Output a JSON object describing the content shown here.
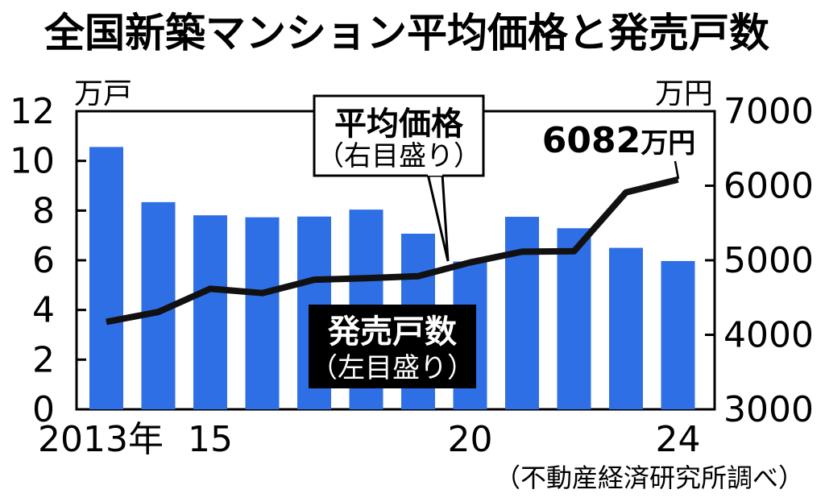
{
  "chart_data": {
    "type": "bar+line",
    "title": "全国新築マンション平均価格と発売戸数",
    "x": [
      2013,
      2014,
      2015,
      2016,
      2017,
      2018,
      2019,
      2020,
      2021,
      2022,
      2023,
      2024
    ],
    "x_tick_labels": [
      {
        "year": 2013,
        "label": "2013年"
      },
      {
        "year": 2015,
        "label": "15"
      },
      {
        "year": 2020,
        "label": "20"
      },
      {
        "year": 2024,
        "label": "24"
      }
    ],
    "series": [
      {
        "name": "発売戸数",
        "axis_note": "（左目盛り）",
        "type": "bar",
        "axis": "left",
        "unit": "万戸",
        "values": [
          10.56,
          8.34,
          7.81,
          7.73,
          7.76,
          8.04,
          7.07,
          5.95,
          7.75,
          7.29,
          6.5,
          5.97
        ],
        "color": "#2f6fe6"
      },
      {
        "name": "平均価格",
        "axis_note": "（右目盛り）",
        "type": "line",
        "axis": "right",
        "unit": "万円",
        "values": [
          4174,
          4306,
          4618,
          4560,
          4739,
          4759,
          4787,
          4971,
          5115,
          5121,
          5911,
          6082
        ],
        "color": "#111111"
      }
    ],
    "y_left": {
      "unit_label": "万戸",
      "ylim": [
        0,
        12
      ],
      "ticks": [
        "0",
        "2",
        "4",
        "6",
        "8",
        "10",
        "12"
      ]
    },
    "y_right": {
      "unit_label": "万円",
      "ylim": [
        3000,
        7000
      ],
      "ticks": [
        "3000",
        "4000",
        "5000",
        "6000",
        "7000"
      ]
    },
    "annotation_peak": {
      "value": "6082",
      "unit": "万円"
    },
    "source": "（不動産経済研究所調べ）"
  }
}
